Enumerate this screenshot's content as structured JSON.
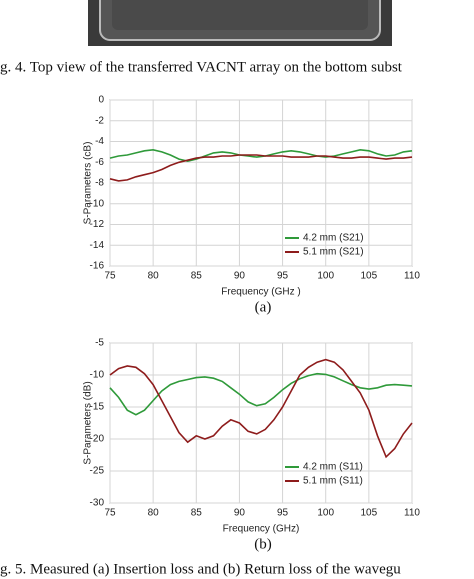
{
  "figure4_caption": "g. 4.   Top view of the transferred VACNT array on the bottom subst",
  "chart_data": [
    {
      "type": "line",
      "ylabel": "S-Parameters (cB)",
      "xlabel": "Frequency (GHz )",
      "panel_label": "(a)",
      "xlim": [
        75,
        110
      ],
      "xticks": [
        75,
        80,
        85,
        90,
        95,
        100,
        105,
        110
      ],
      "ylim": [
        -16,
        0
      ],
      "yticks": [
        0,
        -2,
        -4,
        -6,
        -8,
        -10,
        -12,
        -14,
        -16
      ],
      "grid": true,
      "legend": "lower right",
      "x": [
        75,
        76,
        77,
        78,
        79,
        80,
        81,
        82,
        83,
        84,
        85,
        86,
        87,
        88,
        89,
        90,
        91,
        92,
        93,
        94,
        95,
        96,
        97,
        98,
        99,
        100,
        101,
        102,
        103,
        104,
        105,
        106,
        107,
        108,
        109,
        110
      ],
      "series": [
        {
          "name": "4.2 mm (S21)",
          "color": "#2f9a3a",
          "values": [
            -5.6,
            -5.4,
            -5.3,
            -5.1,
            -4.9,
            -4.8,
            -5.0,
            -5.3,
            -5.7,
            -5.9,
            -5.7,
            -5.4,
            -5.1,
            -5.0,
            -5.1,
            -5.3,
            -5.4,
            -5.5,
            -5.4,
            -5.2,
            -5.0,
            -4.9,
            -5.0,
            -5.2,
            -5.4,
            -5.5,
            -5.4,
            -5.2,
            -5.0,
            -4.8,
            -4.9,
            -5.2,
            -5.4,
            -5.3,
            -5.0,
            -4.9
          ]
        },
        {
          "name": "5.1 mm (S21)",
          "color": "#8e1c1c",
          "values": [
            -7.6,
            -7.8,
            -7.7,
            -7.4,
            -7.2,
            -7.0,
            -6.7,
            -6.3,
            -6.0,
            -5.8,
            -5.6,
            -5.5,
            -5.5,
            -5.4,
            -5.4,
            -5.3,
            -5.3,
            -5.3,
            -5.4,
            -5.4,
            -5.4,
            -5.5,
            -5.5,
            -5.5,
            -5.4,
            -5.4,
            -5.5,
            -5.6,
            -5.6,
            -5.5,
            -5.5,
            -5.6,
            -5.7,
            -5.6,
            -5.6,
            -5.5
          ]
        }
      ]
    },
    {
      "type": "line",
      "ylabel": "S-Parameters (dB)",
      "xlabel": "Frequency (GHz)",
      "panel_label": "(b)",
      "xlim": [
        75,
        110
      ],
      "xticks": [
        75,
        80,
        85,
        90,
        95,
        100,
        105,
        110
      ],
      "ylim": [
        -30,
        -5
      ],
      "yticks": [
        -5,
        -10,
        -15,
        -20,
        -25,
        -30
      ],
      "grid": true,
      "legend": "lower right",
      "x": [
        75,
        76,
        77,
        78,
        79,
        80,
        81,
        82,
        83,
        84,
        85,
        86,
        87,
        88,
        89,
        90,
        91,
        92,
        93,
        94,
        95,
        96,
        97,
        98,
        99,
        100,
        101,
        102,
        103,
        104,
        105,
        106,
        107,
        108,
        109,
        110
      ],
      "series": [
        {
          "name": "4.2 mm (S11)",
          "color": "#2f9a3a",
          "values": [
            -12,
            -13.5,
            -15.5,
            -16.2,
            -15.5,
            -14,
            -12.5,
            -11.5,
            -11,
            -10.7,
            -10.4,
            -10.3,
            -10.5,
            -11,
            -12,
            -13,
            -14.2,
            -14.8,
            -14.5,
            -13.5,
            -12.3,
            -11.3,
            -10.6,
            -10.1,
            -9.8,
            -9.9,
            -10.3,
            -10.9,
            -11.5,
            -12,
            -12.2,
            -12,
            -11.6,
            -11.5,
            -11.6,
            -11.7
          ]
        },
        {
          "name": "5.1 mm (S11)",
          "color": "#8e1c1c",
          "values": [
            -10,
            -9,
            -8.6,
            -8.8,
            -9.8,
            -11.5,
            -14,
            -16.5,
            -19,
            -20.5,
            -19.5,
            -20,
            -19.5,
            -18,
            -17,
            -17.5,
            -18.8,
            -19.2,
            -18.5,
            -17,
            -15,
            -12.5,
            -10,
            -8.8,
            -8,
            -7.6,
            -8,
            -9.2,
            -11,
            -12.8,
            -15.5,
            -19.5,
            -22.8,
            -21.5,
            -19.2,
            -17.5
          ]
        }
      ]
    }
  ],
  "figure5_caption": "g. 5.   Measured (a) Insertion loss and (b) Return loss of the wavegu"
}
